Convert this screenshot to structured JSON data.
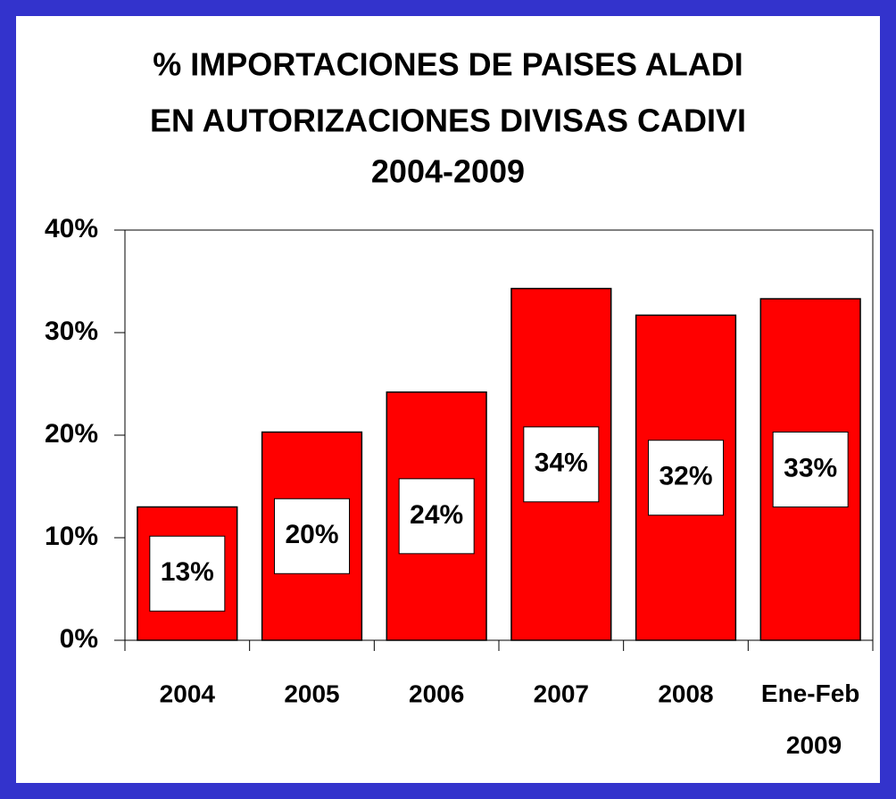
{
  "chart_data": {
    "type": "bar",
    "title": [
      "% IMPORTACIONES DE PAISES ALADI",
      "EN AUTORIZACIONES DIVISAS CADIVI",
      "2004-2009"
    ],
    "categories": [
      "2004",
      "2005",
      "2006",
      "2007",
      "2008",
      "Ene-Feb 2009"
    ],
    "values": [
      13.0,
      20.3,
      24.2,
      34.3,
      31.7,
      33.3
    ],
    "value_labels": [
      "13%",
      "20%",
      "24%",
      "34%",
      "32%",
      "33%"
    ],
    "color": "#ff0000",
    "ylim": [
      0,
      40
    ],
    "yticks": [
      {
        "value": 0,
        "label": "0%"
      },
      {
        "value": 10,
        "label": "10%"
      },
      {
        "value": 20,
        "label": "20%"
      },
      {
        "value": 30,
        "label": "30%"
      },
      {
        "value": 40,
        "label": "40%"
      }
    ],
    "grid": false
  }
}
